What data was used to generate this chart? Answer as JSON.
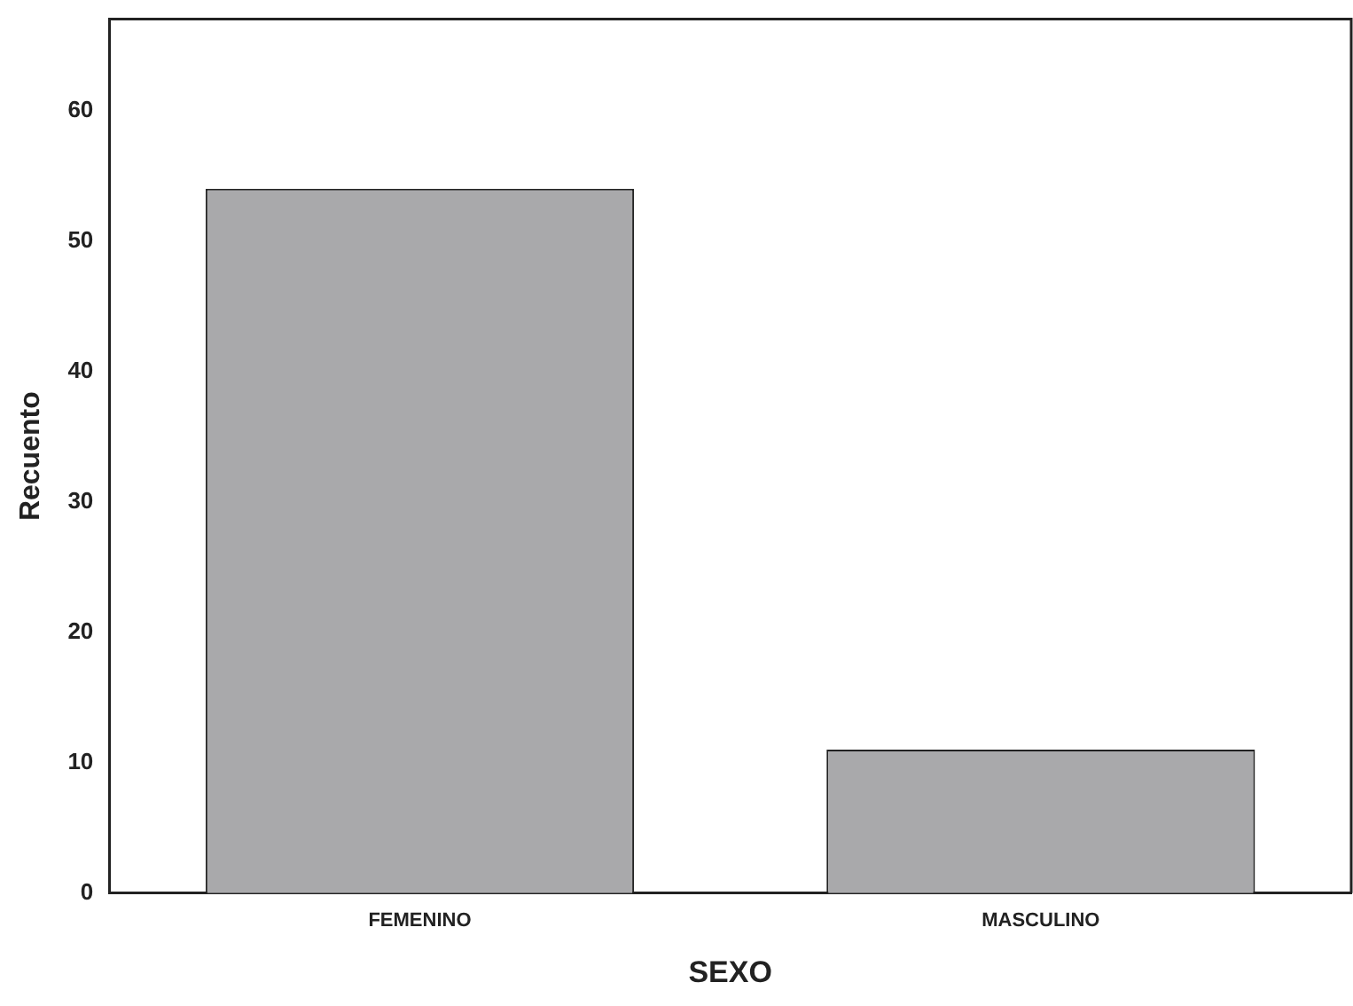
{
  "chart_data": {
    "type": "bar",
    "categories": [
      "FEMENINO",
      "MASCULINO"
    ],
    "values": [
      54,
      11
    ],
    "color": "#a9a9ab",
    "xlabel": "SEXO",
    "ylabel": "Recuento",
    "ylim": [
      0,
      67
    ],
    "yticks": [
      0,
      10,
      20,
      30,
      40,
      50,
      60
    ],
    "grid": false,
    "legend": false
  }
}
